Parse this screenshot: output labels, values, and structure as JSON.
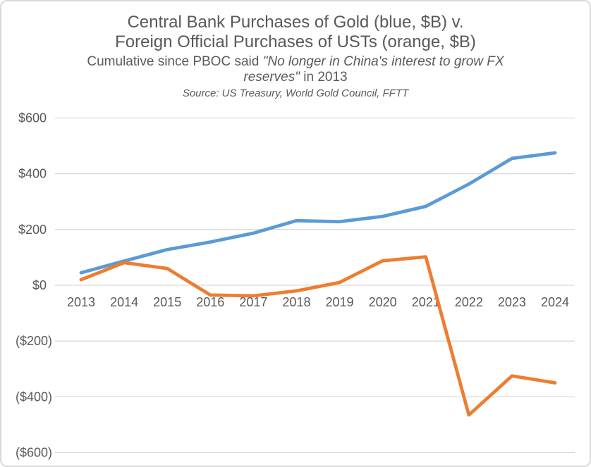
{
  "chart": {
    "title_line1": "Central Bank Purchases of Gold (blue, $B) v.",
    "title_line2": "Foreign Official Purchases of USTs (orange, $B)",
    "subtitle_regular1": "Cumulative since PBOC said ",
    "subtitle_italic_line1": "\"No longer in China's interest to grow FX",
    "subtitle_italic_line2": "reserves\"",
    "subtitle_regular2": " in 2013",
    "source": "Source: US Treasury, World Gold Council, FFTT"
  },
  "chart_data": {
    "type": "line",
    "title": "Central Bank Purchases of Gold (blue, $B) v. Foreign Official Purchases of USTs (orange, $B)",
    "subtitle": "Cumulative since PBOC said \"No longer in China's interest to grow FX reserves\" in 2013",
    "source": "Source: US Treasury, World Gold Council, FFTT",
    "categories": [
      "2013",
      "2014",
      "2015",
      "2016",
      "2017",
      "2018",
      "2019",
      "2020",
      "2021",
      "2022",
      "2023",
      "2024"
    ],
    "series": [
      {
        "name": "Central Bank Purchases of Gold ($B, cumulative)",
        "color": "#5B9BD5",
        "values": [
          45,
          87,
          128,
          155,
          187,
          232,
          228,
          247,
          283,
          363,
          455,
          475
        ]
      },
      {
        "name": "Foreign Official Purchases of USTs ($B, cumulative)",
        "color": "#ED7D31",
        "values": [
          20,
          81,
          60,
          -35,
          -38,
          -20,
          10,
          88,
          102,
          -465,
          -325,
          -350
        ]
      }
    ],
    "y_ticks": [
      {
        "value": 600,
        "label": "$600"
      },
      {
        "value": 400,
        "label": "$400"
      },
      {
        "value": 200,
        "label": "$200"
      },
      {
        "value": 0,
        "label": "$0"
      },
      {
        "value": -200,
        "label": "($200)"
      },
      {
        "value": -400,
        "label": "($400)"
      },
      {
        "value": -600,
        "label": "($600)"
      }
    ],
    "ylim": [
      -600,
      600
    ],
    "grid": true,
    "legend_position": "none",
    "colors": {
      "gridline": "#D9D9D9",
      "axis_text": "#595959",
      "title_text": "#595959",
      "border": "#D9D9D9",
      "background": "#FFFFFF"
    }
  }
}
